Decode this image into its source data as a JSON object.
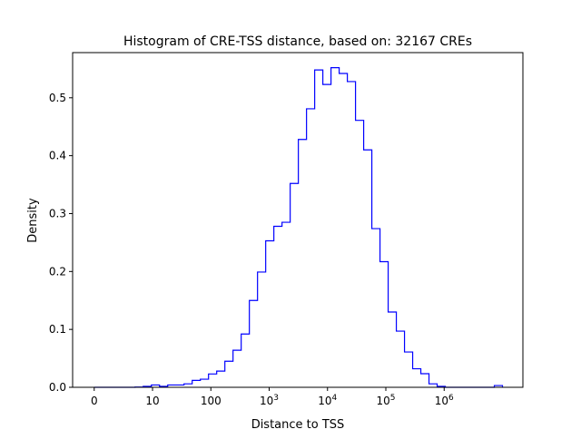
{
  "chart_data": {
    "type": "histogram",
    "title": "Histogram of CRE-TSS distance, based on: 32167 CREs",
    "xlabel": "Distance to TSS",
    "ylabel": "Density",
    "x_scale": "log10(distance), 0 shown at origin",
    "xlim": [
      -0.37,
      7.35
    ],
    "ylim": [
      0,
      0.578
    ],
    "x_ticks": [
      {
        "pos": 0,
        "base": "0",
        "exp": ""
      },
      {
        "pos": 1,
        "base": "10",
        "exp": ""
      },
      {
        "pos": 2,
        "base": "100",
        "exp": ""
      },
      {
        "pos": 3,
        "base": "10",
        "exp": "3"
      },
      {
        "pos": 4,
        "base": "10",
        "exp": "4"
      },
      {
        "pos": 5,
        "base": "10",
        "exp": "5"
      },
      {
        "pos": 6,
        "base": "10",
        "exp": "6"
      }
    ],
    "y_ticks": [
      {
        "value": 0,
        "label": "0.0"
      },
      {
        "value": 0.1,
        "label": "0.1"
      },
      {
        "value": 0.2,
        "label": "0.2"
      },
      {
        "value": 0.3,
        "label": "0.3"
      },
      {
        "value": 0.4,
        "label": "0.4"
      },
      {
        "value": 0.5,
        "label": "0.5"
      }
    ],
    "bin_start": 0.0,
    "bin_width": 0.14,
    "density": [
      0,
      0,
      0,
      0,
      0,
      0.0005,
      0.0016,
      0.004,
      0.0016,
      0.004,
      0.004,
      0.006,
      0.012,
      0.014,
      0.023,
      0.028,
      0.045,
      0.064,
      0.092,
      0.15,
      0.199,
      0.253,
      0.278,
      0.285,
      0.352,
      0.428,
      0.481,
      0.548,
      0.523,
      0.552,
      0.542,
      0.528,
      0.461,
      0.41,
      0.274,
      0.217,
      0.13,
      0.097,
      0.061,
      0.032,
      0.0235,
      0.006,
      0.0016,
      0,
      0,
      0,
      0,
      0,
      0,
      0.003
    ],
    "histtype": "step",
    "color": "#0000ff",
    "grid": false,
    "legend": "none"
  }
}
